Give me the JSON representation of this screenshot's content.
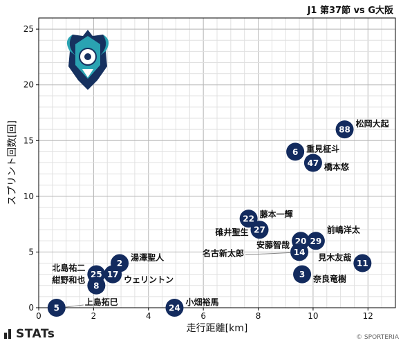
{
  "header": {
    "match_title": "J1 第37節 vs G大阪"
  },
  "footer": {
    "brand": "STATs",
    "credit": "© SPORTERIA"
  },
  "chart_data": {
    "type": "scatter",
    "title": "",
    "xlabel": "走行距離[km]",
    "ylabel": "スプリント回数[回]",
    "xlim": [
      0,
      13
    ],
    "ylim": [
      0,
      26
    ],
    "xticks": [
      0,
      2,
      4,
      6,
      8,
      10,
      12
    ],
    "yticks": [
      0,
      5,
      10,
      15,
      20,
      25
    ],
    "grid": true,
    "marker_color": "#132b5e",
    "points": [
      {
        "number": "88",
        "name": "松岡大起",
        "x": 11.15,
        "y": 16,
        "label_side": "right"
      },
      {
        "number": "6",
        "name": "重見柾斗",
        "x": 9.35,
        "y": 14,
        "label_side": "right"
      },
      {
        "number": "47",
        "name": "橋本悠",
        "x": 10.0,
        "y": 13,
        "label_side": "right"
      },
      {
        "number": "22",
        "name": "藤本一輝",
        "x": 7.65,
        "y": 8,
        "label_side": "right"
      },
      {
        "number": "27",
        "name": "碓井聖生",
        "x": 8.05,
        "y": 7,
        "label_side": "left"
      },
      {
        "number": "20",
        "name": "安藤智哉",
        "x": 9.55,
        "y": 6,
        "label_side": "left"
      },
      {
        "number": "29",
        "name": "前嶋洋太",
        "x": 10.1,
        "y": 6,
        "label_side": "right"
      },
      {
        "number": "14",
        "name": "名古新太郎",
        "x": 9.5,
        "y": 5,
        "label_side": "left"
      },
      {
        "number": "11",
        "name": "見木友哉",
        "x": 11.8,
        "y": 4,
        "label_side": "left"
      },
      {
        "number": "3",
        "name": "奈良竜樹",
        "x": 9.6,
        "y": 3,
        "label_side": "right"
      },
      {
        "number": "2",
        "name": "湯澤聖人",
        "x": 2.95,
        "y": 4,
        "label_side": "right"
      },
      {
        "number": "25",
        "name": "北島祐二",
        "x": 2.1,
        "y": 3,
        "label_side": "left"
      },
      {
        "number": "17",
        "name": "ウェリントン",
        "x": 2.7,
        "y": 3,
        "label_side": "right"
      },
      {
        "number": "8",
        "name": "紺野和也",
        "x": 2.1,
        "y": 2,
        "label_side": "left"
      },
      {
        "number": "5",
        "name": "上島拓巳",
        "x": 0.65,
        "y": 0,
        "label_side": "right"
      },
      {
        "number": "24",
        "name": "小畑裕馬",
        "x": 4.95,
        "y": 0,
        "label_side": "right"
      }
    ]
  }
}
